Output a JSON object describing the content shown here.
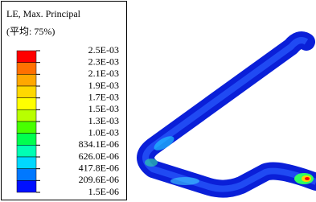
{
  "legend": {
    "title": "LE, Max. Principal",
    "subtitle": "(平均: 75%)",
    "labels": [
      "2.5E-03",
      "2.3E-03",
      "2.1E-03",
      "1.9E-03",
      "1.7E-03",
      "1.5E-03",
      "1.3E-03",
      "1.0E-03",
      "834.1E-06",
      "626.0E-06",
      "417.8E-06",
      "209.6E-06",
      "1.5E-06"
    ],
    "colors": [
      "#ff0000",
      "#ff7000",
      "#ffa800",
      "#ffd800",
      "#ffff00",
      "#b8ff00",
      "#48ff00",
      "#00ff50",
      "#00ffb4",
      "#00d8ff",
      "#0078ff",
      "#0010ff"
    ]
  }
}
